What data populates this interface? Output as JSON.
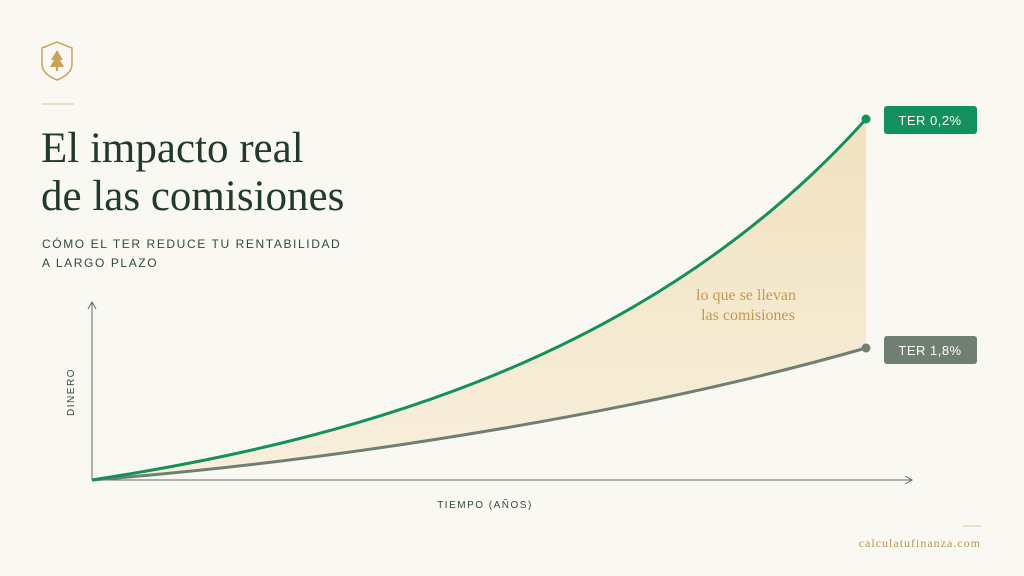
{
  "title": {
    "lines": [
      "El impacto real",
      "de las comisiones"
    ]
  },
  "subtitle": {
    "lines": [
      "CÓMO EL TER REDUCE TU RENTABILIDAD",
      "A LARGO PLAZO"
    ]
  },
  "axes": {
    "y_label": "DINERO",
    "x_label": "TIEMPO (AÑOS)"
  },
  "curves": [
    {
      "label": "TER 0,2%"
    },
    {
      "label": "TER 1,8%"
    }
  ],
  "annotation": {
    "lines": [
      "lo que se llevan",
      "las comisiones"
    ]
  },
  "footer": {
    "site": "calculatufinanza.com"
  }
}
